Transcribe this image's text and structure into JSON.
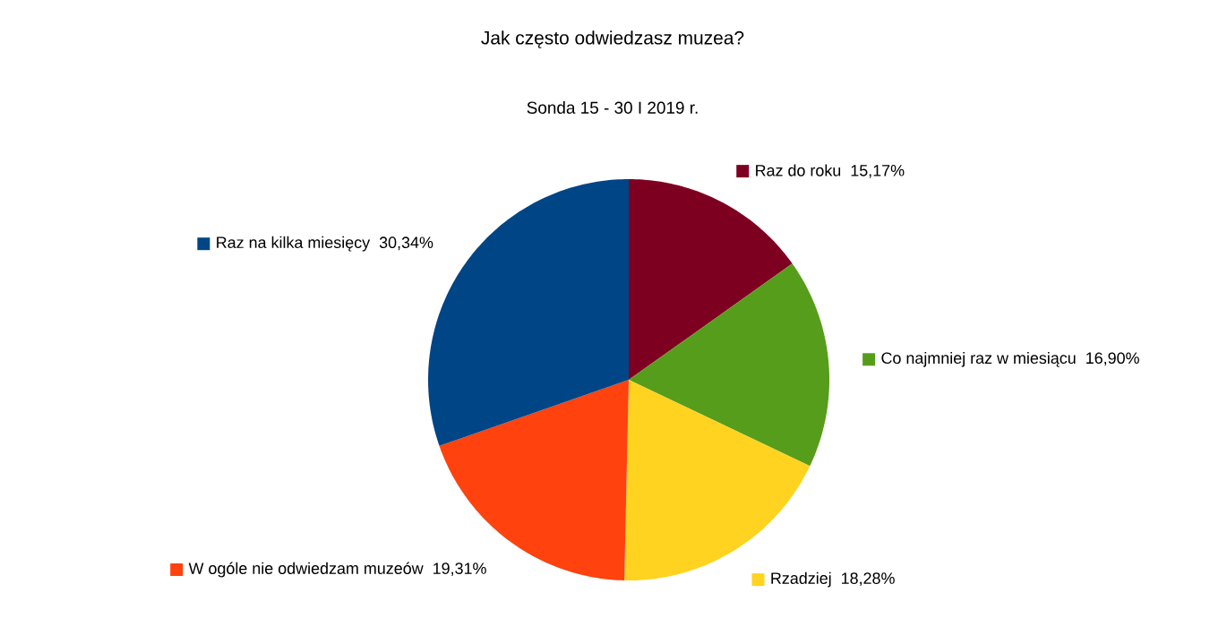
{
  "chart_data": {
    "type": "pie",
    "title": "Jak często odwiedzasz muzea?",
    "subtitle": "Sonda 15 - 30 I 2019 r.",
    "categories": [
      "Raz do roku",
      "Co najmniej raz w miesiącu",
      "Rzadziej",
      "W ogóle nie odwiedzam muzeów",
      "Raz na kilka miesięcy"
    ],
    "values": [
      15.17,
      16.9,
      18.28,
      19.31,
      30.34
    ],
    "value_labels": [
      "15,17%",
      "16,90%",
      "18,28%",
      "19,31%",
      "30,34%"
    ],
    "colors": [
      "#7e0021",
      "#579d1c",
      "#ffd320",
      "#ff420e",
      "#004586"
    ],
    "legend": "right"
  }
}
